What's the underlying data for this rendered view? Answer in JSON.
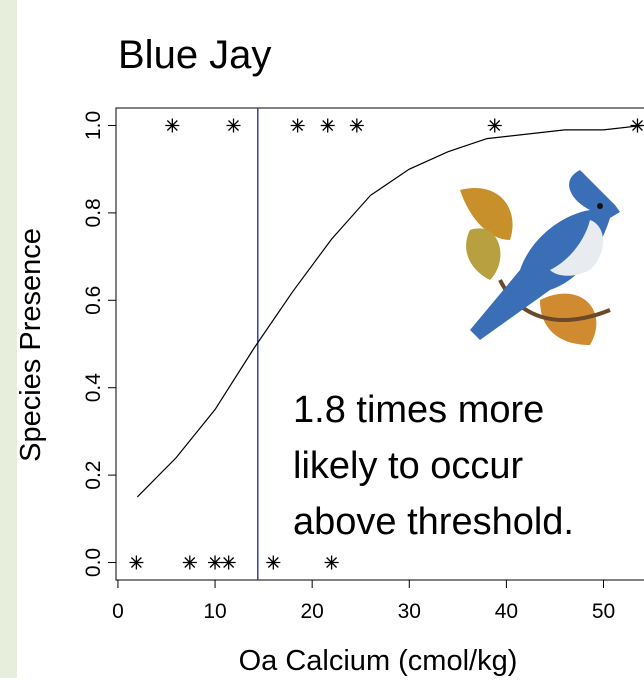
{
  "chart_data": {
    "type": "scatter",
    "title": "Blue Jay",
    "xlabel": "Oa Calcium (cmol/kg)",
    "ylabel": "Species Presence",
    "xlim": [
      -0.2,
      55.2
    ],
    "ylim": [
      -0.04,
      1.04
    ],
    "xticks": [
      0,
      10,
      20,
      30,
      40,
      50
    ],
    "yticks": [
      {
        "value": 0,
        "label": "0.0"
      },
      {
        "value": 0.2,
        "label": "0.2"
      },
      {
        "value": 0.4,
        "label": "0.4"
      },
      {
        "value": 0.6,
        "label": "0.6"
      },
      {
        "value": 0.8,
        "label": "0.8"
      },
      {
        "value": 1,
        "label": "1.0"
      }
    ],
    "series": [
      {
        "marker": "*",
        "color": "#000000",
        "x": [
          5.6,
          11.9,
          18.5,
          21.6,
          24.6,
          38.8,
          53.5,
          1.9,
          7.4,
          10,
          11.4,
          16,
          22
        ],
        "values": [
          1,
          1,
          1,
          1,
          1,
          1,
          1,
          0,
          0,
          0,
          0,
          0,
          0
        ]
      },
      {
        "marker": "line",
        "color": "#000000",
        "x": [
          2,
          6,
          10,
          14,
          18,
          22,
          26,
          30,
          34,
          38,
          42,
          46,
          50,
          54
        ],
        "values": [
          0.15,
          0.24,
          0.35,
          0.49,
          0.62,
          0.74,
          0.84,
          0.9,
          0.94,
          0.97,
          0.98,
          0.99,
          0.99,
          1
        ]
      }
    ],
    "threshold": {
      "x": 14.4,
      "color": "#3a3ab8"
    },
    "annotation": [
      "1.8 times more",
      "likely to occur",
      "above threshold."
    ]
  }
}
